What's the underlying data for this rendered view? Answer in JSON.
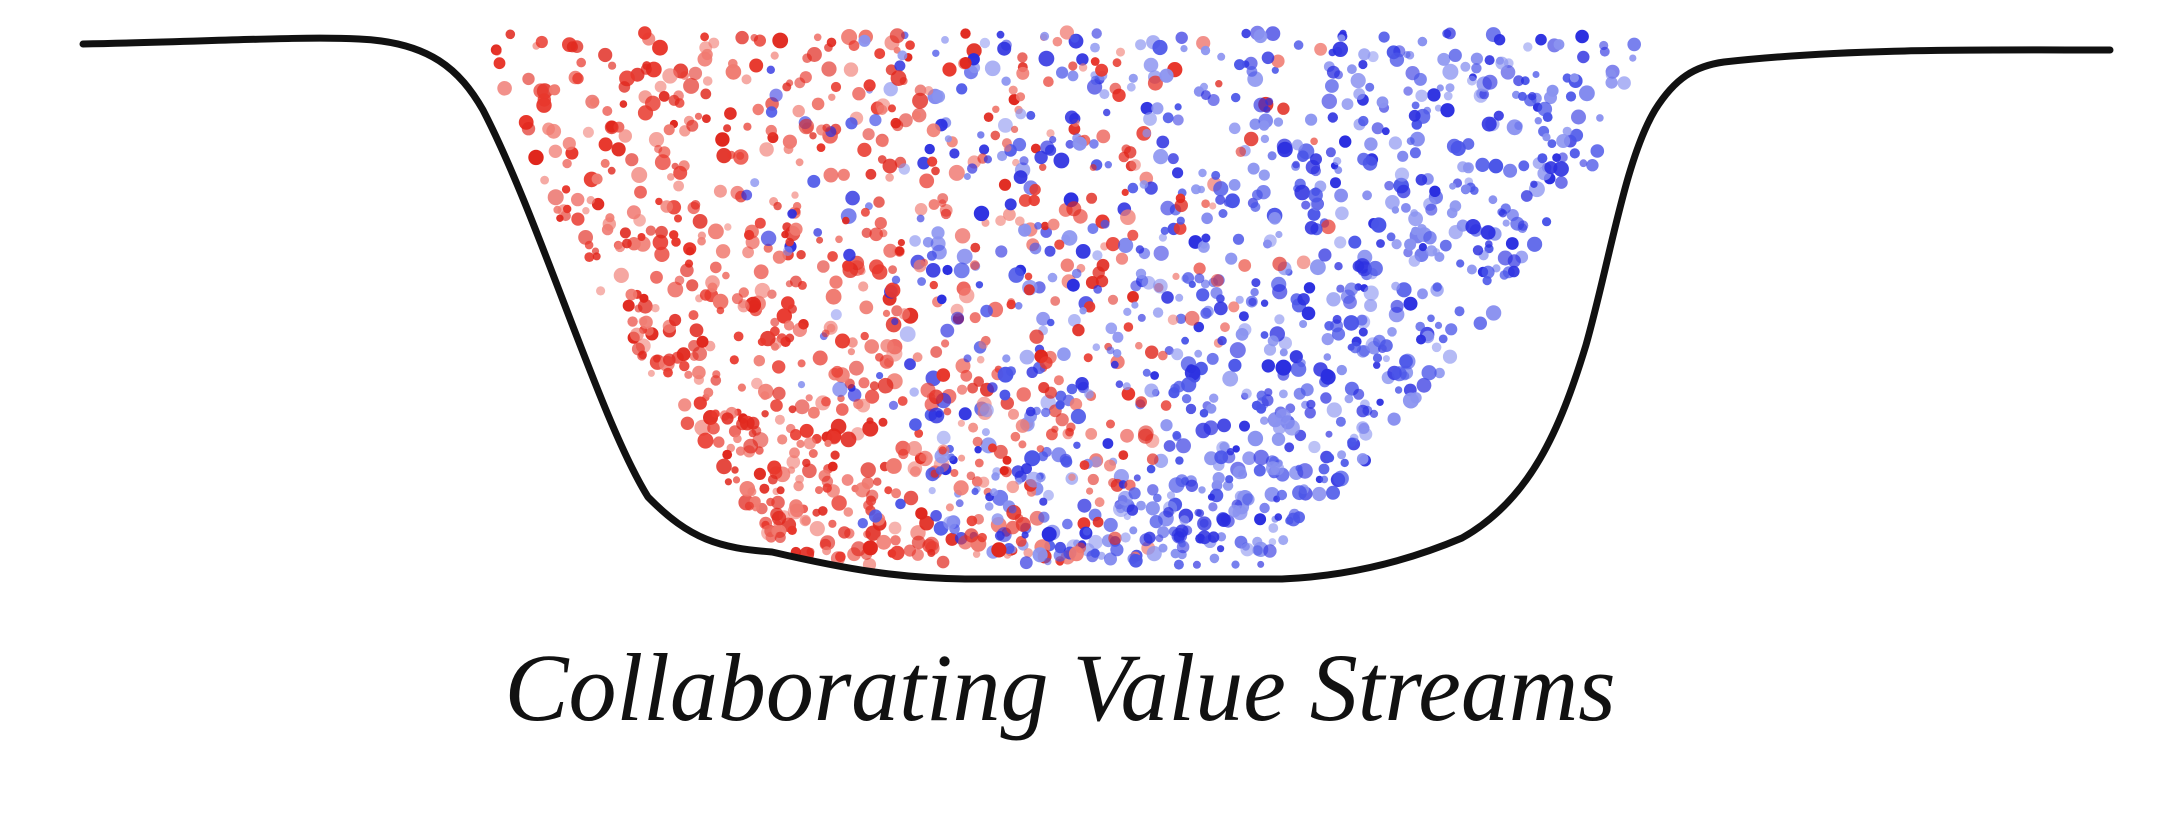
{
  "caption": "Collaborating Value Streams"
}
